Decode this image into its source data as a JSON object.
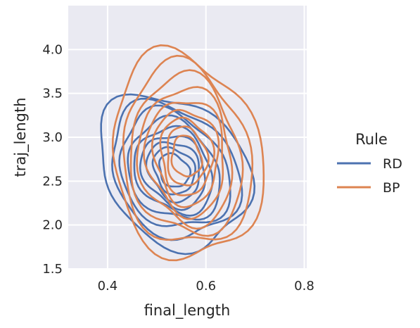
{
  "chart_data": {
    "type": "kde-contour",
    "title": "",
    "xlabel": "final_length",
    "ylabel": "traj_length",
    "xlim": [
      0.32,
      0.805
    ],
    "ylim": [
      1.5,
      4.5
    ],
    "xticks": [
      0.4,
      0.6,
      0.8
    ],
    "xtick_labels": [
      "0.4",
      "0.6",
      "0.8"
    ],
    "yticks": [
      1.5,
      2.0,
      2.5,
      3.0,
      3.5,
      4.0
    ],
    "ytick_labels": [
      "1.5",
      "2.0",
      "2.5",
      "3.0",
      "3.5",
      "4.0"
    ],
    "grid": true,
    "legend": {
      "title": "Rule",
      "placement": "right"
    },
    "series": [
      {
        "name": "RD",
        "color": "#4c72b0",
        "center": [
          0.535,
          2.62
        ],
        "radius_x": [
          0.165,
          0.14,
          0.12,
          0.1,
          0.085,
          0.07,
          0.057,
          0.045,
          0.033
        ],
        "radius_y": [
          0.82,
          0.72,
          0.63,
          0.54,
          0.46,
          0.39,
          0.32,
          0.25,
          0.18
        ],
        "rotation_deg": 22
      },
      {
        "name": "BP",
        "color": "#dd8452",
        "center": [
          0.56,
          2.78
        ],
        "radius_x": [
          0.17,
          0.145,
          0.125,
          0.105,
          0.088,
          0.072,
          0.058,
          0.045,
          0.033
        ],
        "radius_y": [
          1.1,
          0.98,
          0.86,
          0.74,
          0.63,
          0.52,
          0.42,
          0.32,
          0.22
        ],
        "rotation_deg": 28
      }
    ]
  }
}
